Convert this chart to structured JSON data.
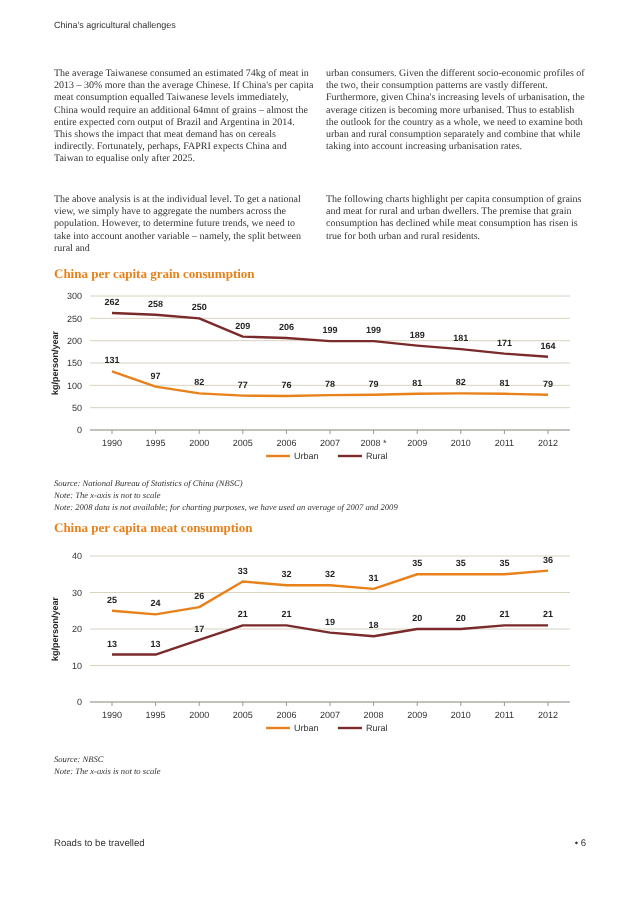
{
  "chart_data": [
    {
      "type": "line",
      "title": "China per capita grain consumption",
      "ylabel": "kg/person/year",
      "categories": [
        "1990",
        "1995",
        "2000",
        "2005",
        "2006",
        "2007",
        "2008 *",
        "2009",
        "2010",
        "2011",
        "2012"
      ],
      "series": [
        {
          "name": "Urban",
          "color": "#e8811a",
          "values": [
            131,
            97,
            82,
            77,
            76,
            78,
            79,
            81,
            82,
            81,
            79
          ]
        },
        {
          "name": "Rural",
          "color": "#7a2a2a",
          "values": [
            262,
            258,
            250,
            209,
            206,
            199,
            199,
            189,
            181,
            171,
            164
          ]
        }
      ],
      "ylim": [
        0,
        300
      ],
      "yticks": [
        0,
        50,
        100,
        150,
        200,
        250,
        300
      ],
      "grid": "y",
      "legend": "bottom",
      "data_labels": true,
      "marker": "none",
      "annotations": [
        "China's agricultural challenges",
        "The average Taiwanese consumed an estimated 74kg of meat in 2013 – 30% more than the average Chinese. If China's per capita meat consumption equalled Taiwanese levels immediately, China would require an additional 64mnt of grains – almost the entire expected corn output of Brazil and Argentina in 2014. This shows the impact that meat demand has on cereals indirectly. Fortunately, perhaps, FAPRI expects China and Taiwan to equalise only after 2025.",
        "The above analysis is at the individual level. To get a national view, we simply have to aggregate the numbers across the population. However, to determine future trends, we need to take into account another variable – namely, the split between rural and",
        "urban consumers. Given the different socio-economic profiles of the two, their consumption patterns are vastly different. Furthermore, given China's increasing levels of urbanisation, the average citizen is becoming more urbanised. Thus to establish the outlook for the country as a whole, we need to examine both urban and rural consumption separately and combine that while taking into account increasing urbanisation rates.",
        "The following charts highlight per capita consumption of grains and meat for rural and urban dwellers. The premise that grain consumption has declined while meat consumption has risen is true for both urban and rural residents.",
        "Source: National Bureau of Statistics of China (NBSC)",
        "Note: The x-axis is not to scale",
        "Note: 2008 data is not available; for charting purposes, we have used an average of 2007 and 2009"
      ]
    },
    {
      "type": "line",
      "title": "China per capita meat consumption",
      "ylabel": "kg/person/year",
      "categories": [
        "1990",
        "1995",
        "2000",
        "2005",
        "2006",
        "2007",
        "2008",
        "2009",
        "2010",
        "2011",
        "2012"
      ],
      "series": [
        {
          "name": "Urban",
          "color": "#e8811a",
          "values": [
            25,
            24,
            26,
            33,
            32,
            32,
            31,
            35,
            35,
            35,
            36
          ]
        },
        {
          "name": "Rural",
          "color": "#7a2a2a",
          "values": [
            13,
            13,
            17,
            21,
            21,
            19,
            18,
            20,
            20,
            21,
            21
          ]
        }
      ],
      "ylim": [
        0,
        40
      ],
      "yticks": [
        0,
        10,
        20,
        30,
        40
      ],
      "grid": "y",
      "legend": "bottom",
      "data_labels": true,
      "marker": "none",
      "annotations": [
        "Source: NBSC",
        "Note: The x-axis is not to scale",
        "Roads to be travelled",
        "• 6"
      ]
    }
  ]
}
